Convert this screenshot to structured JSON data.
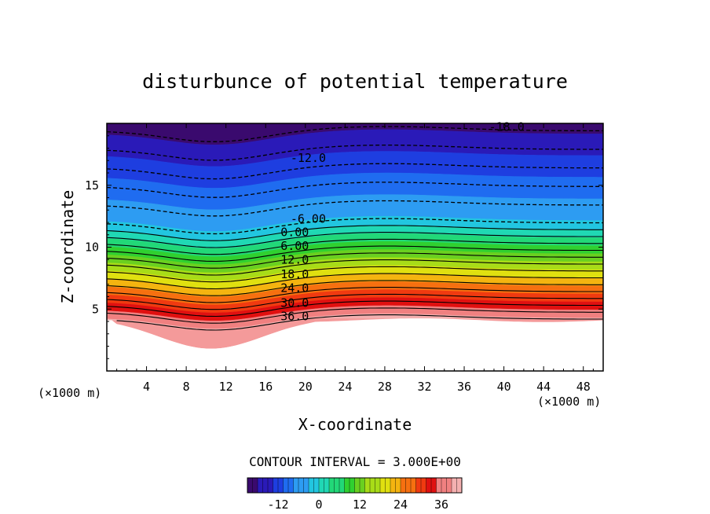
{
  "chart_data": {
    "type": "heatmap",
    "title": "disturbunce of potential temperature",
    "xlabel": "X-coordinate",
    "ylabel": "Z-coordinate",
    "x_unit_label": "(×1000 m)",
    "z_unit_label": "(×1000 m)",
    "xlim": [
      0,
      50
    ],
    "ylim": [
      0,
      20
    ],
    "x_ticks": [
      4,
      8,
      12,
      16,
      20,
      24,
      28,
      32,
      36,
      40,
      44,
      48
    ],
    "x_tick_labels": [
      "4",
      "8",
      "12",
      "16",
      "20",
      "24",
      "28",
      "32",
      "36",
      "40",
      "44",
      "48"
    ],
    "y_ticks": [
      5,
      10,
      15
    ],
    "y_tick_labels": [
      "5",
      "10",
      "15"
    ],
    "contour_interval_text": "CONTOUR INTERVAL = 3.000E+00",
    "contour_interval": 3.0,
    "contour_labels": [
      {
        "text": "-18.0",
        "x": 38.5,
        "z": 19.7
      },
      {
        "text": "-12.0",
        "x": 18.5,
        "z": 17.2
      },
      {
        "text": "-6.00",
        "x": 18.5,
        "z": 12.3
      },
      {
        "text": "0.00",
        "x": 17.5,
        "z": 11.2
      },
      {
        "text": "6.00",
        "x": 17.5,
        "z": 10.1
      },
      {
        "text": "12.0",
        "x": 17.5,
        "z": 9.0
      },
      {
        "text": "18.0",
        "x": 17.5,
        "z": 7.8
      },
      {
        "text": "24.0",
        "x": 17.5,
        "z": 6.7
      },
      {
        "text": "30.0",
        "x": 17.5,
        "z": 5.5
      },
      {
        "text": "36.0",
        "x": 17.5,
        "z": 4.4
      }
    ],
    "colorbar": {
      "range": [
        -21,
        42
      ],
      "ticks": [
        -12,
        0,
        12,
        24,
        36
      ],
      "tick_labels": [
        "-12",
        "0",
        "12",
        "24",
        "36"
      ]
    },
    "colormap": [
      "#3a0a6e",
      "#2a1ab8",
      "#1e3ee0",
      "#1f6cf0",
      "#2d9cf2",
      "#22c6e0",
      "#20d8b4",
      "#22d878",
      "#30d030",
      "#6ad020",
      "#a8dc18",
      "#e0e010",
      "#f4b410",
      "#f67010",
      "#f03a10",
      "#e01010",
      "#f08080",
      "#f4b0b0"
    ],
    "grid": false
  }
}
